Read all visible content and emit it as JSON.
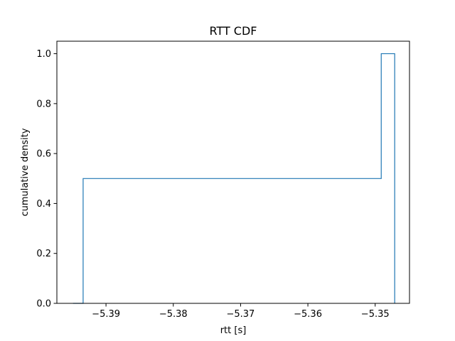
{
  "chart_data": {
    "type": "line",
    "style": "step histogram (cumulative)",
    "title": "RTT CDF",
    "xlabel": "rtt [s]",
    "ylabel": "cumulative density",
    "xlim": [
      -5.3973,
      -5.3449
    ],
    "ylim": [
      0.0,
      1.05
    ],
    "xticks": [
      -5.39,
      -5.38,
      -5.37,
      -5.36,
      -5.35
    ],
    "xtick_labels": [
      "−5.39",
      "−5.38",
      "−5.37",
      "−5.36",
      "−5.35"
    ],
    "yticks": [
      0.0,
      0.2,
      0.4,
      0.6,
      0.8,
      1.0
    ],
    "ytick_labels": [
      "0.0",
      "0.2",
      "0.4",
      "0.6",
      "0.8",
      "1.0"
    ],
    "grid": false,
    "series": [
      {
        "color": "#1f77b4",
        "x": [
          -5.3949,
          -5.3934,
          -5.3934,
          -5.3491,
          -5.3491,
          -5.3471,
          -5.3471
        ],
        "y": [
          0.0,
          0.0,
          0.5,
          0.5,
          1.0,
          1.0,
          0.0
        ]
      }
    ]
  }
}
